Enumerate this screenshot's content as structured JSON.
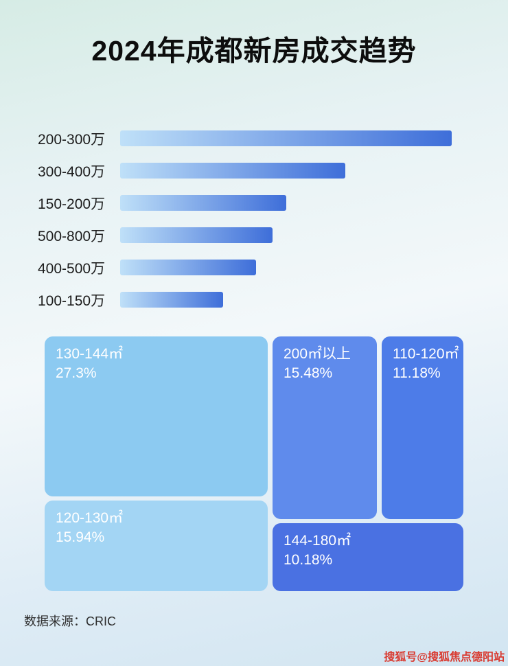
{
  "page": {
    "title": "2024年成都新房成交趋势",
    "source": "数据来源：CRIC",
    "watermark": "搜狐号@搜狐焦点德阳站"
  },
  "chart_data": [
    {
      "type": "bar",
      "orientation": "horizontal",
      "title": "2024年成都新房成交趋势",
      "categories": [
        "200-300万",
        "300-400万",
        "150-200万",
        "500-800万",
        "400-500万",
        "100-150万"
      ],
      "values_relative_pct": [
        100,
        68,
        50,
        46,
        41,
        31
      ],
      "bar_gradient": [
        "#bfe0f8",
        "#3e6ed9"
      ],
      "xlabel": "",
      "ylabel": "",
      "grid": false,
      "legend": false
    },
    {
      "type": "treemap",
      "items": [
        {
          "label": "130-144㎡",
          "value_pct": 27.3,
          "value_label": "27.3%",
          "color": "#8ccaf1"
        },
        {
          "label": "120-130㎡",
          "value_pct": 15.94,
          "value_label": "15.94%",
          "color": "#a3d5f4"
        },
        {
          "label": "200㎡以上",
          "value_pct": 15.48,
          "value_label": "15.48%",
          "color": "#5f8bec"
        },
        {
          "label": "110-120㎡",
          "value_pct": 11.18,
          "value_label": "11.18%",
          "color": "#4d7ce8"
        },
        {
          "label": "144-180㎡",
          "value_pct": 10.18,
          "value_label": "10.18%",
          "color": "#4a71e2"
        }
      ]
    }
  ]
}
